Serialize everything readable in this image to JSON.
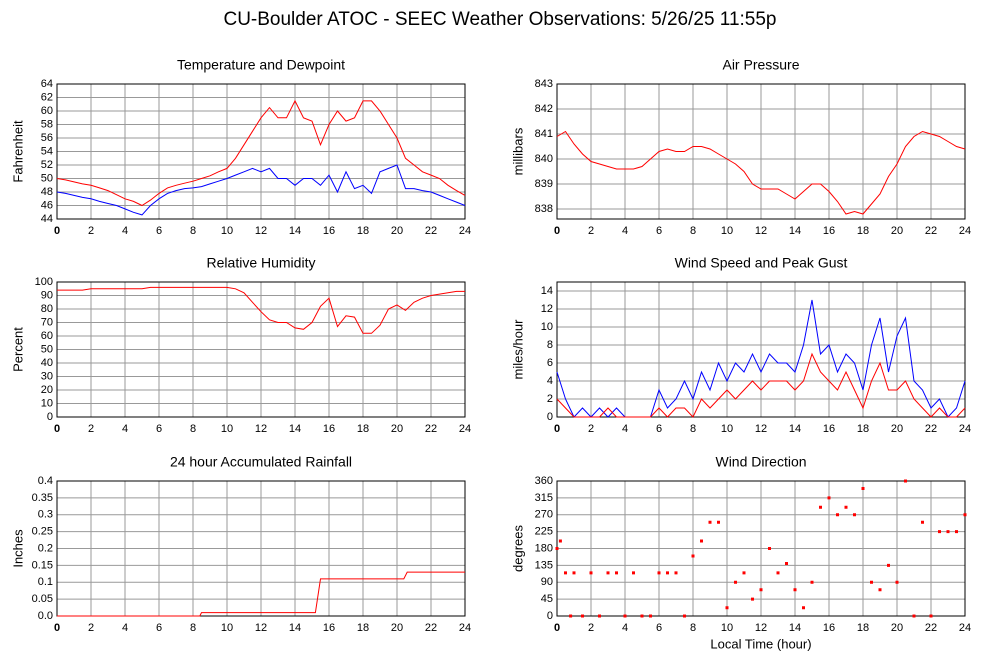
{
  "title": "CU-Boulder ATOC - SEEC Weather Observations: 5/26/25 11:55p",
  "chart_data": [
    {
      "type": "line",
      "title": "Temperature and Dewpoint",
      "ylabel": "Fahrenheit",
      "grid": true,
      "xlim": [
        0,
        24
      ],
      "xticks": [
        0,
        2,
        4,
        6,
        8,
        10,
        12,
        14,
        16,
        18,
        20,
        22,
        24
      ],
      "ylim": [
        44,
        64
      ],
      "yticks": [
        44,
        46,
        48,
        50,
        52,
        54,
        56,
        58,
        60,
        62,
        64
      ],
      "x": [
        0,
        0.5,
        1,
        1.5,
        2,
        2.5,
        3,
        3.5,
        4,
        4.5,
        5,
        5.5,
        6,
        6.5,
        7,
        7.5,
        8,
        8.5,
        9,
        9.5,
        10,
        10.5,
        11,
        11.5,
        12,
        12.5,
        13,
        13.5,
        14,
        14.5,
        15,
        15.5,
        16,
        16.5,
        17,
        17.5,
        18,
        18.5,
        19,
        19.5,
        20,
        20.5,
        21,
        21.5,
        22,
        22.5,
        23,
        23.5,
        24
      ],
      "series": [
        {
          "color": "#ff0000",
          "values": [
            50,
            49.8,
            49.5,
            49.2,
            49,
            48.6,
            48.2,
            47.6,
            47,
            46.6,
            46,
            46.8,
            47.8,
            48.6,
            49,
            49.3,
            49.6,
            50,
            50.4,
            51,
            51.5,
            53,
            55,
            57,
            59,
            60.5,
            59,
            59,
            61.5,
            59,
            58.5,
            55,
            58,
            60,
            58.5,
            59,
            61.5,
            61.5,
            60,
            58,
            56,
            53,
            52,
            51,
            50.5,
            50,
            49,
            48.2,
            47.5
          ]
        },
        {
          "color": "#0000ff",
          "values": [
            48,
            47.8,
            47.5,
            47.2,
            47,
            46.6,
            46.3,
            46,
            45.5,
            45,
            44.6,
            46,
            47,
            47.8,
            48.2,
            48.5,
            48.6,
            48.8,
            49.2,
            49.6,
            50,
            50.5,
            51,
            51.5,
            51,
            51.5,
            50,
            50,
            49,
            50,
            50,
            49,
            50.5,
            48,
            51,
            48.5,
            49,
            47.8,
            51,
            51.5,
            52,
            48.5,
            48.5,
            48.2,
            48,
            47.5,
            47,
            46.5,
            46
          ]
        }
      ]
    },
    {
      "type": "line",
      "title": "Air Pressure",
      "ylabel": "millibars",
      "grid": true,
      "xlim": [
        0,
        24
      ],
      "xticks": [
        0,
        2,
        4,
        6,
        8,
        10,
        12,
        14,
        16,
        18,
        20,
        22,
        24
      ],
      "ylim": [
        837.6,
        843
      ],
      "yticks": [
        838,
        839,
        840,
        841,
        842,
        843
      ],
      "x": [
        0,
        0.5,
        1,
        1.5,
        2,
        2.5,
        3,
        3.5,
        4,
        4.5,
        5,
        5.5,
        6,
        6.5,
        7,
        7.5,
        8,
        8.5,
        9,
        9.5,
        10,
        10.5,
        11,
        11.5,
        12,
        12.5,
        13,
        13.5,
        14,
        14.5,
        15,
        15.5,
        16,
        16.5,
        17,
        17.5,
        18,
        18.5,
        19,
        19.5,
        20,
        20.5,
        21,
        21.5,
        22,
        22.5,
        23,
        23.5,
        24
      ],
      "series": [
        {
          "color": "#ff0000",
          "values": [
            840.9,
            841.1,
            840.6,
            840.2,
            839.9,
            839.8,
            839.7,
            839.6,
            839.6,
            839.6,
            839.7,
            840.0,
            840.3,
            840.4,
            840.3,
            840.3,
            840.5,
            840.5,
            840.4,
            840.2,
            840.0,
            839.8,
            839.5,
            839.0,
            838.8,
            838.8,
            838.8,
            838.6,
            838.4,
            838.7,
            839.0,
            839.0,
            838.7,
            838.3,
            837.8,
            837.9,
            837.8,
            838.2,
            838.6,
            839.3,
            839.8,
            840.5,
            840.9,
            841.1,
            841.0,
            840.9,
            840.7,
            840.5,
            840.4
          ]
        }
      ]
    },
    {
      "type": "line",
      "title": "Relative Humidity",
      "ylabel": "Percent",
      "grid": true,
      "xlim": [
        0,
        24
      ],
      "xticks": [
        0,
        2,
        4,
        6,
        8,
        10,
        12,
        14,
        16,
        18,
        20,
        22,
        24
      ],
      "ylim": [
        0,
        100
      ],
      "yticks": [
        0,
        10,
        20,
        30,
        40,
        50,
        60,
        70,
        80,
        90,
        100
      ],
      "x": [
        0,
        0.5,
        1,
        1.5,
        2,
        2.5,
        3,
        3.5,
        4,
        4.5,
        5,
        5.5,
        6,
        6.5,
        7,
        7.5,
        8,
        8.5,
        9,
        9.5,
        10,
        10.5,
        11,
        11.5,
        12,
        12.5,
        13,
        13.5,
        14,
        14.5,
        15,
        15.5,
        16,
        16.5,
        17,
        17.5,
        18,
        18.5,
        19,
        19.5,
        20,
        20.5,
        21,
        21.5,
        22,
        22.5,
        23,
        23.5,
        24
      ],
      "series": [
        {
          "color": "#ff0000",
          "values": [
            94,
            94,
            94,
            94,
            95,
            95,
            95,
            95,
            95,
            95,
            95,
            96,
            96,
            96,
            96,
            96,
            96,
            96,
            96,
            96,
            96,
            95,
            92,
            85,
            78,
            72,
            70,
            70,
            66,
            65,
            70,
            82,
            88,
            67,
            75,
            74,
            62,
            62,
            68,
            80,
            83,
            79,
            85,
            88,
            90,
            91,
            92,
            93,
            93
          ]
        }
      ]
    },
    {
      "type": "line",
      "title": "Wind Speed and Peak Gust",
      "ylabel": "miles/hour",
      "grid": true,
      "xlim": [
        0,
        24
      ],
      "xticks": [
        0,
        2,
        4,
        6,
        8,
        10,
        12,
        14,
        16,
        18,
        20,
        22,
        24
      ],
      "ylim": [
        0,
        15
      ],
      "yticks": [
        0,
        2,
        4,
        6,
        8,
        10,
        12,
        14
      ],
      "x": [
        0,
        0.5,
        1,
        1.5,
        2,
        2.5,
        3,
        3.5,
        4,
        4.5,
        5,
        5.5,
        6,
        6.5,
        7,
        7.5,
        8,
        8.5,
        9,
        9.5,
        10,
        10.5,
        11,
        11.5,
        12,
        12.5,
        13,
        13.5,
        14,
        14.5,
        15,
        15.5,
        16,
        16.5,
        17,
        17.5,
        18,
        18.5,
        19,
        19.5,
        20,
        20.5,
        21,
        21.5,
        22,
        22.5,
        23,
        23.5,
        24
      ],
      "series": [
        {
          "color": "#0000ff",
          "values": [
            5,
            2,
            0,
            1,
            0,
            1,
            0,
            1,
            0,
            0,
            0,
            0,
            3,
            1,
            2,
            4,
            2,
            5,
            3,
            6,
            4,
            6,
            5,
            7,
            5,
            7,
            6,
            6,
            5,
            8,
            13,
            7,
            8,
            5,
            7,
            6,
            3,
            8,
            11,
            5,
            9,
            11,
            4,
            3,
            1,
            2,
            0,
            1,
            4
          ]
        },
        {
          "color": "#ff0000",
          "values": [
            2,
            1,
            0,
            0,
            0,
            0,
            1,
            0,
            0,
            0,
            0,
            0,
            1,
            0,
            1,
            1,
            0,
            2,
            1,
            2,
            3,
            2,
            3,
            4,
            3,
            4,
            4,
            4,
            3,
            4,
            7,
            5,
            4,
            3,
            5,
            3,
            1,
            4,
            6,
            3,
            3,
            4,
            2,
            1,
            0,
            1,
            0,
            0,
            1
          ]
        }
      ]
    },
    {
      "type": "line",
      "title": "24 hour Accumulated Rainfall",
      "ylabel": "Inches",
      "grid": true,
      "xlim": [
        0,
        24
      ],
      "xticks": [
        0,
        2,
        4,
        6,
        8,
        10,
        12,
        14,
        16,
        18,
        20,
        22,
        24
      ],
      "ylim": [
        0,
        0.4
      ],
      "yticks": [
        {
          "value": 0,
          "label": "0.0"
        },
        0.05,
        0.1,
        0.15,
        0.2,
        0.25,
        0.3,
        0.35,
        0.4
      ],
      "x": [
        0,
        8.4,
        8.5,
        15.2,
        15.5,
        20.4,
        20.6,
        24
      ],
      "series": [
        {
          "color": "#ff0000",
          "values": [
            0,
            0,
            0.01,
            0.01,
            0.11,
            0.11,
            0.13,
            0.13
          ]
        }
      ]
    },
    {
      "type": "scatter",
      "title": "Wind Direction",
      "ylabel": "degrees",
      "xlabel": "Local Time (hour)",
      "grid": true,
      "xlim": [
        0,
        24
      ],
      "xticks": [
        0,
        2,
        4,
        6,
        8,
        10,
        12,
        14,
        16,
        18,
        20,
        22,
        24
      ],
      "ylim": [
        0,
        360
      ],
      "yticks": [
        0,
        45,
        90,
        135,
        180,
        225,
        270,
        315,
        360
      ],
      "x": [
        0,
        0.2,
        0.5,
        0.8,
        1,
        1.5,
        2,
        2.5,
        3,
        3.5,
        4,
        4.5,
        5,
        5.5,
        6,
        6.5,
        7,
        7.5,
        8,
        8.5,
        9,
        9.5,
        10,
        10.5,
        11,
        11.5,
        12,
        12.5,
        13,
        13.5,
        14,
        14.5,
        15,
        15.5,
        16,
        16.5,
        17,
        17.5,
        18,
        18.5,
        19,
        19.5,
        20,
        20.5,
        21,
        21.5,
        22,
        22.5,
        23,
        23.5,
        24
      ],
      "series": [
        {
          "color": "#ff0000",
          "values": [
            180,
            200,
            115,
            0,
            115,
            0,
            115,
            0,
            115,
            115,
            0,
            115,
            0,
            0,
            115,
            115,
            115,
            0,
            160,
            200,
            250,
            250,
            22,
            90,
            115,
            45,
            70,
            180,
            115,
            140,
            70,
            22,
            90,
            290,
            315,
            270,
            290,
            270,
            340,
            90,
            70,
            135,
            90,
            360,
            0,
            250,
            0,
            225,
            225,
            225,
            270
          ]
        }
      ]
    }
  ]
}
